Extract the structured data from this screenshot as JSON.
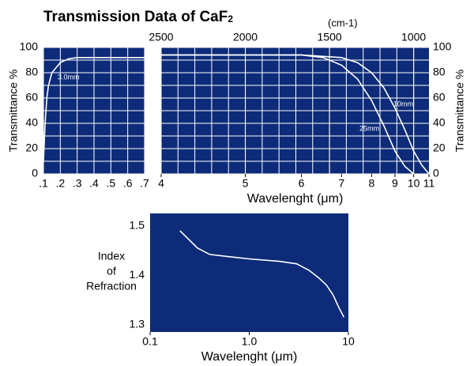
{
  "title": "Transmission Data of CaF",
  "title_subscript": "2",
  "chart_data": [
    {
      "type": "line",
      "ylabel": "Transmittance %",
      "yaxis_side": "left",
      "xscale": "linear",
      "xlim": [
        0.1,
        0.7
      ],
      "xticks": [
        {
          "value": 0.1,
          "label": ".1"
        },
        {
          "value": 0.2,
          "label": ".2"
        },
        {
          "value": 0.3,
          "label": ".3"
        },
        {
          "value": 0.4,
          "label": ".4"
        },
        {
          "value": 0.5,
          "label": ".5"
        },
        {
          "value": 0.6,
          "label": ".6"
        },
        {
          "value": 0.7,
          "label": ".7"
        }
      ],
      "ylim": [
        0,
        100
      ],
      "yticks": [
        0,
        20,
        40,
        60,
        80,
        100
      ],
      "grid": true,
      "background": "#0d2b78",
      "series": [
        {
          "name": "3.0mm",
          "color": "#ffffff",
          "x": [
            0.1,
            0.11,
            0.12,
            0.13,
            0.15,
            0.2,
            0.25,
            0.3,
            0.7
          ],
          "values": [
            10,
            40,
            60,
            70,
            80,
            88,
            91,
            92,
            92
          ]
        }
      ]
    },
    {
      "type": "line",
      "ylabel": "Transmittance %",
      "yaxis_side": "right",
      "xscale": "reciprocal",
      "xlabel": "Wavelenght (μm)",
      "xlim": [
        4,
        11
      ],
      "xticks": [
        4,
        5,
        6,
        7,
        8,
        9,
        10,
        11
      ],
      "x2label": "(cm-1)",
      "x2lim": [
        2500,
        909.09
      ],
      "x2ticks": [
        2500,
        2000,
        1500,
        1000
      ],
      "ylim": [
        0,
        100
      ],
      "yticks": [
        0,
        20,
        40,
        60,
        80,
        100
      ],
      "grid": true,
      "background": "#0d2b78",
      "series": [
        {
          "name": "10mm",
          "color": "#ffffff",
          "x": [
            4,
            6,
            7,
            7.5,
            8,
            8.5,
            9,
            9.5,
            10,
            10.5,
            11
          ],
          "values": [
            94,
            94,
            92,
            88,
            80,
            68,
            52,
            35,
            18,
            7,
            0
          ]
        },
        {
          "name": "25mm",
          "color": "#ffffff",
          "x": [
            4,
            6,
            6.5,
            7,
            7.5,
            8,
            8.5,
            9,
            9.5,
            10
          ],
          "values": [
            94,
            94,
            92,
            86,
            75,
            58,
            38,
            18,
            6,
            0
          ]
        }
      ]
    },
    {
      "type": "line",
      "ylabel": [
        "Index",
        "of",
        "Refraction"
      ],
      "yaxis_side": "left",
      "xscale": "log",
      "xlabel": "Wavelenght (μm)",
      "xlim": [
        0.1,
        10
      ],
      "xticks": [
        0.1,
        {
          "value": 1,
          "label": "1.0"
        },
        10
      ],
      "ylim": [
        1.285,
        1.525
      ],
      "yticks": [
        1.3,
        1.4,
        1.5
      ],
      "grid": false,
      "background": "#0d2b78",
      "series": [
        {
          "name": "CaF2",
          "color": "#ffffff",
          "x": [
            0.2,
            0.3,
            0.4,
            0.6,
            1,
            2,
            3,
            4,
            5,
            6,
            7,
            8,
            9
          ],
          "values": [
            1.49,
            1.455,
            1.442,
            1.438,
            1.433,
            1.428,
            1.423,
            1.41,
            1.395,
            1.38,
            1.36,
            1.335,
            1.315
          ]
        }
      ]
    }
  ]
}
